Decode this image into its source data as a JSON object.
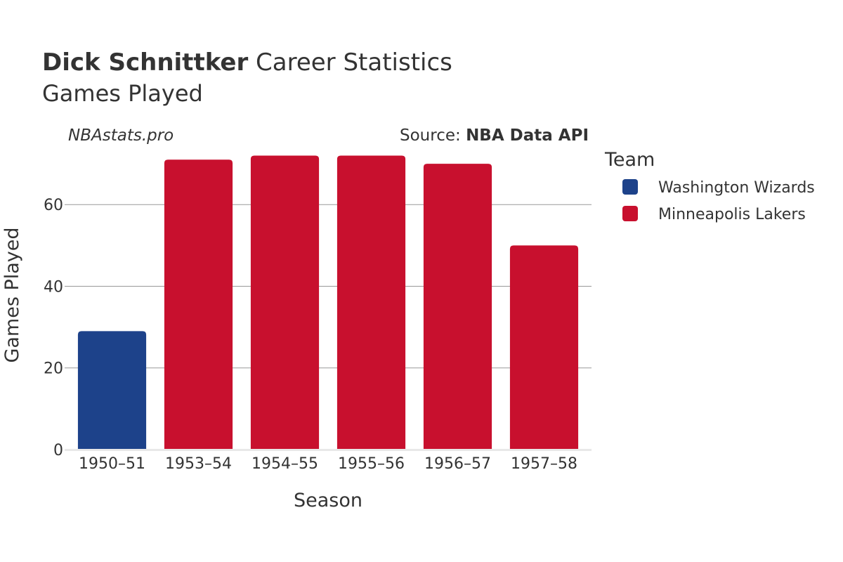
{
  "header": {
    "player_name": "Dick Schnittker",
    "title_rest": " Career Statistics",
    "subtitle": "Games Played",
    "watermark": "NBAstats.pro",
    "source_prefix": "Source: ",
    "source_name": "NBA Data API"
  },
  "legend": {
    "title": "Team",
    "placement": "right",
    "items": [
      {
        "label": "Washington Wizards",
        "color": "#1d428a"
      },
      {
        "label": "Minneapolis Lakers",
        "color": "#c8102e"
      }
    ]
  },
  "chart_data": {
    "type": "bar",
    "xlabel": "Season",
    "ylabel": "Games Played",
    "ylim": [
      0,
      75
    ],
    "yticks": [
      0,
      20,
      40,
      60
    ],
    "grid": true,
    "categories": [
      "1950–51",
      "1953–54",
      "1954–55",
      "1955–56",
      "1956–57",
      "1957–58"
    ],
    "values": [
      29,
      71,
      72,
      72,
      70,
      50
    ],
    "teams": [
      "Washington Wizards",
      "Minneapolis Lakers",
      "Minneapolis Lakers",
      "Minneapolis Lakers",
      "Minneapolis Lakers",
      "Minneapolis Lakers"
    ],
    "colors": {
      "Washington Wizards": "#1d428a",
      "Minneapolis Lakers": "#c8102e"
    }
  }
}
